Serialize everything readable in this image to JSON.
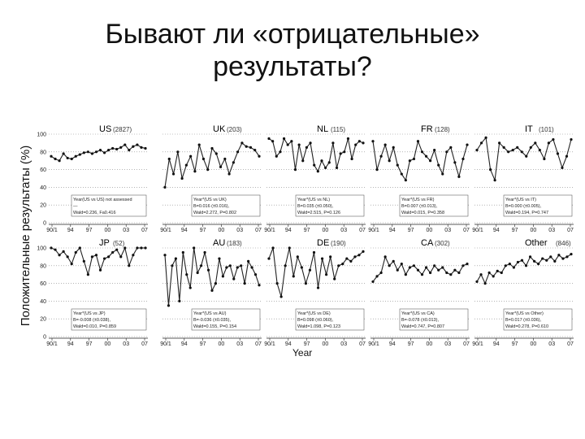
{
  "slide": {
    "title_line1": "Бывают ли «отрицательные»",
    "title_line2": "результаты?",
    "ylabel": "Положительные результаты (%)",
    "xlabel": "Year"
  },
  "chart_data": {
    "type": "line",
    "x_tick_labels": [
      "90/1",
      "94",
      "97",
      "00",
      "03",
      "07"
    ],
    "y_tick_labels": [
      "0",
      "20",
      "40",
      "60",
      "80",
      "100"
    ],
    "ylim": [
      0,
      100
    ],
    "grid": "horizontal dotted",
    "panels": [
      {
        "name": "US",
        "count": "(2827)",
        "stats": [
          "Year(US vs US) not assessed",
          "—",
          "Wald=0.236, Fa0.416"
        ],
        "values": [
          75,
          72,
          70,
          78,
          73,
          72,
          75,
          77,
          79,
          80,
          78,
          80,
          82,
          79,
          82,
          84,
          83,
          85,
          88,
          82,
          86,
          88,
          85,
          84
        ]
      },
      {
        "name": "UK",
        "count": "(203)",
        "stats": [
          "Year*(US vs UK)",
          "B=0.016 (±0.016),",
          "Wald=2.272, P=0.802"
        ],
        "values": [
          40,
          72,
          55,
          80,
          50,
          65,
          75,
          58,
          88,
          72,
          60,
          84,
          78,
          63,
          72,
          55,
          68,
          80,
          90,
          86,
          85,
          82,
          75
        ]
      },
      {
        "name": "NL",
        "count": "(115)",
        "stats": [
          "Year*(US vs NL)",
          "B=0.035 (±0.050),",
          "Wald=2.515, P=0.126"
        ],
        "values": [
          95,
          92,
          75,
          80,
          95,
          88,
          92,
          60,
          88,
          70,
          85,
          90,
          65,
          58,
          70,
          62,
          68,
          90,
          62,
          78,
          80,
          95,
          72,
          88,
          92,
          90
        ]
      },
      {
        "name": "FR",
        "count": "(128)",
        "stats": [
          "Year*(US vs FR)",
          "B=0.007 (±0.013),",
          "Wald=0.015, P=0.358"
        ],
        "values": [
          92,
          60,
          75,
          88,
          70,
          85,
          65,
          55,
          48,
          70,
          72,
          92,
          80,
          75,
          70,
          82,
          65,
          55,
          80,
          85,
          68,
          52,
          72,
          88
        ]
      },
      {
        "name": "IT",
        "count": "(101)",
        "stats": [
          "Year*(US vs IT)",
          "B=0.000 (±0.005),",
          "Wald=0.194, P=0.747"
        ],
        "values": [
          82,
          90,
          96,
          60,
          48,
          90,
          85,
          80,
          82,
          85,
          80,
          75,
          85,
          90,
          82,
          72,
          90,
          94,
          78,
          62,
          75,
          94
        ]
      },
      {
        "name": "JP",
        "count": "(52)",
        "stats": [
          "Year*(US vs JP)",
          "B=-0.008 (±0.038),",
          "Wald=0.010, P=0.859"
        ],
        "values": [
          100,
          98,
          92,
          96,
          90,
          82,
          95,
          100,
          85,
          70,
          90,
          92,
          75,
          88,
          90,
          95,
          98,
          90,
          100,
          80,
          92,
          100,
          100,
          100
        ]
      },
      {
        "name": "AU",
        "count": "(183)",
        "stats": [
          "Year*(US vs AU)",
          "B=-0.036 (±0.035),",
          "Wald=0.155, P=0.154"
        ],
        "values": [
          92,
          35,
          80,
          88,
          40,
          95,
          70,
          55,
          100,
          72,
          80,
          95,
          75,
          52,
          60,
          88,
          68,
          78,
          80,
          65,
          78,
          80,
          60,
          85,
          78,
          70,
          58
        ]
      },
      {
        "name": "DE",
        "count": "(190)",
        "stats": [
          "Year*(US vs DE)",
          "B=0.098 (±0.060),",
          "Wald=1.098, P=0.123"
        ],
        "values": [
          88,
          100,
          60,
          45,
          80,
          100,
          68,
          90,
          78,
          60,
          75,
          95,
          55,
          88,
          70,
          90,
          65,
          80,
          82,
          88,
          85,
          90,
          92,
          96
        ]
      },
      {
        "name": "CA",
        "count": "(302)",
        "stats": [
          "Year*(US vs CA)",
          "B=-0.078 (±0.013),",
          "Wald=0.747, P=0.807"
        ],
        "values": [
          62,
          68,
          72,
          90,
          80,
          85,
          75,
          82,
          70,
          78,
          80,
          75,
          70,
          78,
          72,
          80,
          75,
          78,
          72,
          70,
          75,
          72,
          80,
          82
        ]
      },
      {
        "name": "Other",
        "count": "(846)",
        "stats": [
          "Year*(US vs Other)",
          "B=0.017 (±0.036),",
          "Wald=0.278, P=0.610"
        ],
        "values": [
          62,
          70,
          60,
          72,
          68,
          74,
          72,
          80,
          82,
          78,
          84,
          86,
          80,
          90,
          85,
          82,
          88,
          86,
          90,
          85,
          92,
          88,
          90,
          93
        ]
      }
    ]
  }
}
